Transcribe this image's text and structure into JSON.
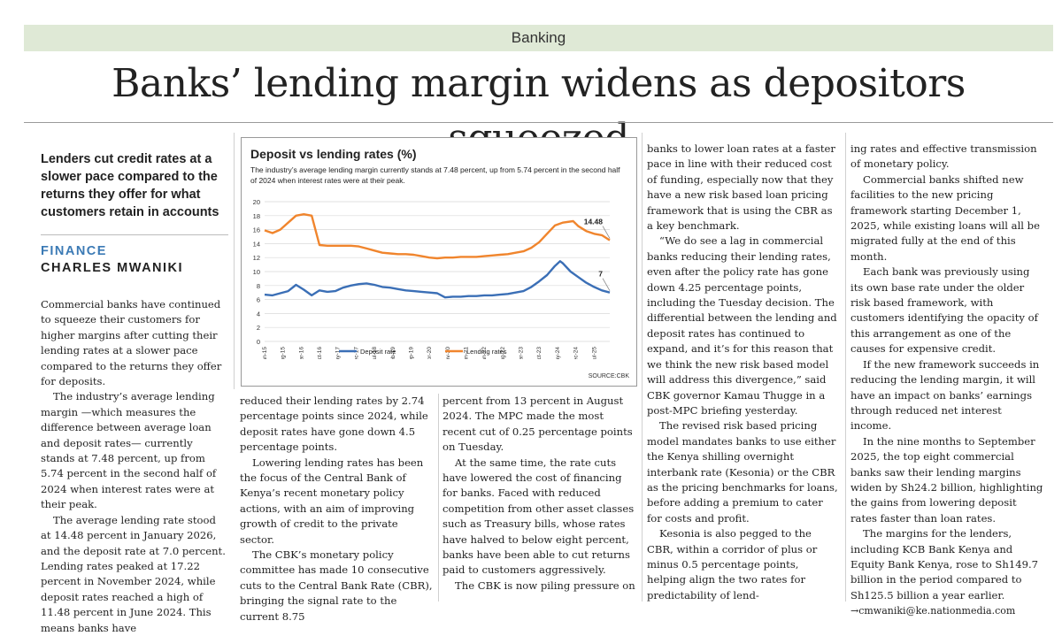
{
  "section": "Banking",
  "headline": "Banks’ lending margin widens as depositors squeezed",
  "standfirst": "Lenders cut credit rates at a slower pace compared to the returns they offer for what customers retain in accounts",
  "kicker": "FINANCE",
  "author": "CHARLES MWANIKI",
  "col1": [
    "Commercial banks have continued to squeeze their customers for higher margins after cutting their lending rates at a slower pace compared to the returns they offer for deposits.",
    "The industry’s average lending margin —which measures the difference between average loan and deposit rates— currently stands at 7.48 percent, up from 5.74 percent in the second half of 2024 when interest rates were at their peak.",
    "The average lending rate stood at 14.48 percent in January 2026, and the deposit rate at 7.0 percent. Lending rates peaked at 17.22 percent in November 2024, while deposit rates reached a high of 11.48 percent in June 2024. This means banks have"
  ],
  "col2": [
    "reduced their lending rates by 2.74 percentage points since 2024, while deposit rates have gone down 4.5 percentage points.",
    "Lowering lending rates has been the focus of the Central Bank of Kenya’s recent monetary policy actions, with an aim of improving growth of credit to the private sector.",
    "The CBK’s monetary policy committee has made 10 consecutive cuts to the Central Bank Rate (CBR), bringing the signal rate to the current 8.75"
  ],
  "col3": [
    "percent from 13 percent in August 2024. The MPC made the most recent cut of 0.25 percentage points on Tuesday.",
    "At the same time, the rate cuts have lowered the cost of financing for banks. Faced with reduced competition from other asset classes such as Treasury bills, whose rates have halved to below eight percent, banks have been able to cut returns paid to customers aggressively.",
    "The CBK is now piling pressure on"
  ],
  "col4": [
    "banks to lower loan rates at a faster pace in line with their reduced cost of funding, especially now that they have a new risk based loan pricing framework that is using the CBR as a key benchmark.",
    "“We do see a lag in commercial banks reducing their lending rates, even after the policy rate has gone down 4.25 percentage points, including the Tuesday decision. The differential between the lending and deposit rates has continued to expand, and it’s for this reason that we think the new risk based model will address this divergence,” said CBK governor Kamau Thugge in a post-MPC briefing yesterday.",
    "The revised risk based pricing model mandates banks to use either the Kenya shilling overnight interbank rate (Kesonia) or the CBR as the pricing benchmarks for loans, before adding a premium to cater for costs and profit.",
    "Kesonia is also pegged to the CBR, within a corridor of plus or minus 0.5 percentage points, helping align the two rates for predictability of lend-"
  ],
  "col5": [
    "ing rates and effective transmission of monetary policy.",
    "Commercial banks shifted new facilities to the new pricing framework starting December 1, 2025, while existing loans will all be migrated fully at the end of this month.",
    "Each bank was previously using its own base rate under the older risk based framework, with customers identifying the opacity of this arrangement as one of the causes for expensive credit.",
    "If the new framework succeeds in reducing the lending margin, it will have an impact on banks’ earnings through reduced net interest income.",
    "In the nine months to September 2025, the top eight commercial banks saw their lending margins widen by Sh24.2 billion, highlighting the gains from lowering deposit rates faster than loan rates.",
    "The margins for the lenders, including KCB Bank Kenya and Equity Bank Kenya, rose to Sh149.7 billion in the period compared to Sh125.5 billion a year earlier."
  ],
  "email": "→cmwaniki@ke.nationmedia.com",
  "chart": {
    "title": "Deposit vs lending rates (%)",
    "subtitle": "The industry’s average lending margin currently stands at 7.48 percent, up from 5.74 percent in the second half of 2024 when interest rates were at their peak.",
    "source": "SOURCE:CBK"
  },
  "chart_data": {
    "type": "line",
    "title": "Deposit vs lending rates (%)",
    "ylim": [
      0,
      20
    ],
    "yticks": [
      "0",
      "2",
      "4",
      "6",
      "8",
      "10",
      "12",
      "14",
      "16",
      "18",
      "20"
    ],
    "xticks": [
      "Jan-15",
      "Aug-15",
      "Mar-16",
      "Oct-16",
      "May-17",
      "Dec-17",
      "Jul-18",
      "Feb-19",
      "Sep-19",
      "Apr-20",
      "Nov-20",
      "Jun-21",
      "Jan-22",
      "Aug-22",
      "Mar-23",
      "Oct-23",
      "May-24",
      "Dec-24",
      "Jul-25"
    ],
    "grid": true,
    "legend_position": "bottom",
    "series": [
      {
        "name": "Deposit rate",
        "color": "#3b6fb6",
        "x": [
          "2015-01",
          "2015-04",
          "2015-07",
          "2015-10",
          "2016-01",
          "2016-04",
          "2016-07",
          "2016-10",
          "2017-01",
          "2017-04",
          "2017-07",
          "2017-10",
          "2018-01",
          "2018-04",
          "2018-07",
          "2018-10",
          "2019-01",
          "2019-04",
          "2019-07",
          "2019-10",
          "2020-01",
          "2020-04",
          "2020-07",
          "2020-10",
          "2021-01",
          "2021-04",
          "2021-07",
          "2021-10",
          "2022-01",
          "2022-04",
          "2022-07",
          "2022-10",
          "2023-01",
          "2023-04",
          "2023-07",
          "2023-10",
          "2024-01",
          "2024-04",
          "2024-06",
          "2024-07",
          "2024-10",
          "2025-01",
          "2025-04",
          "2025-07",
          "2025-10",
          "2026-01"
        ],
        "values": [
          6.7,
          6.6,
          6.9,
          7.2,
          8.1,
          7.4,
          6.6,
          7.3,
          7.1,
          7.2,
          7.7,
          8.0,
          8.2,
          8.3,
          8.1,
          7.8,
          7.7,
          7.5,
          7.3,
          7.2,
          7.1,
          7.0,
          6.9,
          6.3,
          6.4,
          6.4,
          6.5,
          6.5,
          6.6,
          6.6,
          6.7,
          6.8,
          7.0,
          7.2,
          7.8,
          8.6,
          9.5,
          10.8,
          11.48,
          11.2,
          10.0,
          9.2,
          8.4,
          7.8,
          7.3,
          7.0
        ]
      },
      {
        "name": "Lending rates",
        "color": "#f0852d",
        "x": [
          "2015-01",
          "2015-04",
          "2015-07",
          "2015-10",
          "2016-01",
          "2016-04",
          "2016-07",
          "2016-10",
          "2017-01",
          "2017-04",
          "2017-07",
          "2017-10",
          "2018-01",
          "2018-04",
          "2018-07",
          "2018-10",
          "2019-01",
          "2019-04",
          "2019-07",
          "2019-10",
          "2020-01",
          "2020-04",
          "2020-07",
          "2020-10",
          "2021-01",
          "2021-04",
          "2021-07",
          "2021-10",
          "2022-01",
          "2022-04",
          "2022-07",
          "2022-10",
          "2023-01",
          "2023-04",
          "2023-07",
          "2023-10",
          "2024-01",
          "2024-04",
          "2024-07",
          "2024-11",
          "2025-01",
          "2025-04",
          "2025-07",
          "2025-10",
          "2026-01"
        ],
        "values": [
          15.9,
          15.5,
          16.0,
          17.0,
          18.0,
          18.2,
          18.0,
          13.8,
          13.7,
          13.7,
          13.7,
          13.7,
          13.6,
          13.3,
          13.0,
          12.7,
          12.6,
          12.5,
          12.5,
          12.4,
          12.2,
          12.0,
          11.9,
          12.0,
          12.0,
          12.1,
          12.1,
          12.1,
          12.2,
          12.3,
          12.4,
          12.5,
          12.7,
          12.9,
          13.4,
          14.2,
          15.4,
          16.6,
          17.0,
          17.22,
          16.5,
          15.8,
          15.4,
          15.2,
          14.48
        ]
      }
    ],
    "annotations": [
      {
        "series": "Lending rates",
        "x": "2026-01",
        "label": "14.48"
      },
      {
        "series": "Deposit rate",
        "x": "2026-01",
        "label": "7"
      }
    ]
  }
}
